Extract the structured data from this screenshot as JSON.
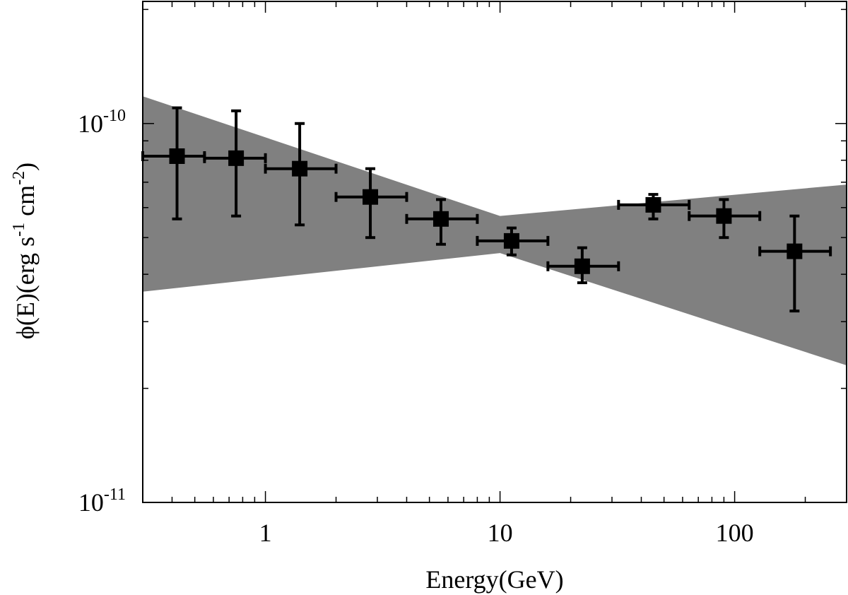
{
  "chart_data": {
    "type": "scatter",
    "title": "",
    "xlabel": "Energy(GeV)",
    "ylabel": {
      "prefix": "ϕ(E)(erg s",
      "exp1": "-1",
      "middle": " cm",
      "exp2": "-2",
      "suffix": ")"
    },
    "xscale": "log",
    "yscale": "log",
    "xlim": [
      0.3,
      300
    ],
    "ylim": [
      1e-11,
      2.1e-10
    ],
    "x_ticks": [
      {
        "value": 1,
        "label": "1"
      },
      {
        "value": 10,
        "label": "10"
      },
      {
        "value": 100,
        "label": "100"
      }
    ],
    "y_ticks": [
      {
        "value": 1e-11,
        "base": "10",
        "exp": "-11"
      },
      {
        "value": 1e-10,
        "base": "10",
        "exp": "-10"
      }
    ],
    "band": {
      "color": "#808080",
      "upper": [
        [
          0.3,
          1.18e-10
        ],
        [
          10,
          5.7e-11
        ],
        [
          300,
          6.9e-11
        ]
      ],
      "lower": [
        [
          0.3,
          3.6e-11
        ],
        [
          10,
          4.55e-11
        ],
        [
          300,
          2.3e-11
        ]
      ]
    },
    "points": [
      {
        "x": 0.42,
        "xlo": 0.3,
        "xhi": 0.55,
        "y": 8.2e-11,
        "ylo": 5.6e-11,
        "yhi": 1.1e-10
      },
      {
        "x": 0.75,
        "xlo": 0.55,
        "xhi": 1.0,
        "y": 8.1e-11,
        "ylo": 5.7e-11,
        "yhi": 1.08e-10
      },
      {
        "x": 1.4,
        "xlo": 1.0,
        "xhi": 2.0,
        "y": 7.6e-11,
        "ylo": 5.4e-11,
        "yhi": 1e-10
      },
      {
        "x": 2.8,
        "xlo": 2.0,
        "xhi": 4.0,
        "y": 6.4e-11,
        "ylo": 5e-11,
        "yhi": 7.6e-11
      },
      {
        "x": 5.6,
        "xlo": 4.0,
        "xhi": 8.0,
        "y": 5.6e-11,
        "ylo": 4.8e-11,
        "yhi": 6.3e-11
      },
      {
        "x": 11.2,
        "xlo": 8.0,
        "xhi": 16.0,
        "y": 4.9e-11,
        "ylo": 4.5e-11,
        "yhi": 5.3e-11
      },
      {
        "x": 22.4,
        "xlo": 16.0,
        "xhi": 32.0,
        "y": 4.2e-11,
        "ylo": 3.8e-11,
        "yhi": 4.7e-11
      },
      {
        "x": 45,
        "xlo": 32,
        "xhi": 64,
        "y": 6.1e-11,
        "ylo": 5.6e-11,
        "yhi": 6.5e-11
      },
      {
        "x": 90,
        "xlo": 64,
        "xhi": 128,
        "y": 5.7e-11,
        "ylo": 5e-11,
        "yhi": 6.3e-11
      },
      {
        "x": 180,
        "xlo": 128,
        "xhi": 256,
        "y": 4.6e-11,
        "ylo": 3.2e-11,
        "yhi": 5.7e-11
      }
    ],
    "grid": false,
    "legend": "none"
  }
}
